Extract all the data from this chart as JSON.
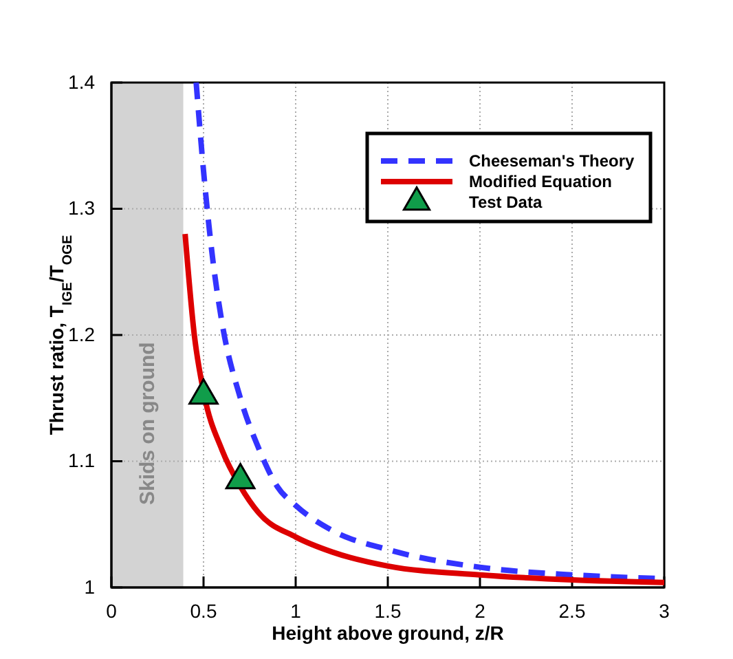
{
  "chart_data": {
    "type": "line",
    "xlabel": "Height above ground, z/R",
    "ylabel": "Thrust ratio, T$_{IGE}$/T$_{OGE}$",
    "xlim": [
      0,
      3
    ],
    "ylim": [
      1,
      1.4
    ],
    "xticks": [
      0,
      0.5,
      1,
      1.5,
      2,
      2.5,
      3
    ],
    "yticks": [
      1,
      1.1,
      1.2,
      1.3,
      1.4
    ],
    "grid": true,
    "legend": "top right",
    "bands": [
      {
        "axis": "x",
        "from": 0,
        "to": 0.39,
        "label": "Skids on ground",
        "color": "#d3d3d3"
      }
    ],
    "series": [
      {
        "name": "Cheeseman's Theory",
        "color": "#3333ff",
        "line_style": "dashed",
        "x": [
          0.46,
          0.5,
          0.55,
          0.6,
          0.7,
          0.8,
          0.9,
          1.0,
          1.2,
          1.5,
          2.0,
          2.5,
          3.0
        ],
        "values": [
          1.4,
          1.33,
          1.26,
          1.21,
          1.15,
          1.11,
          1.08,
          1.065,
          1.045,
          1.03,
          1.016,
          1.01,
          1.007
        ]
      },
      {
        "name": "Modified Equation",
        "color": "#dd0000",
        "line_style": "solid",
        "x": [
          0.4,
          0.45,
          0.5,
          0.6,
          0.7,
          0.8,
          1.0,
          1.2,
          1.5,
          2.0,
          2.5,
          3.0
        ],
        "values": [
          1.28,
          1.2,
          1.155,
          1.109,
          1.08,
          1.059,
          1.04,
          1.028,
          1.017,
          1.01,
          1.006,
          1.004
        ]
      },
      {
        "name": "Test Data",
        "type": "scatter",
        "marker": "triangle",
        "color": "#109d4a",
        "x": [
          0.5,
          0.7
        ],
        "values": [
          1.152,
          1.085
        ]
      }
    ]
  }
}
